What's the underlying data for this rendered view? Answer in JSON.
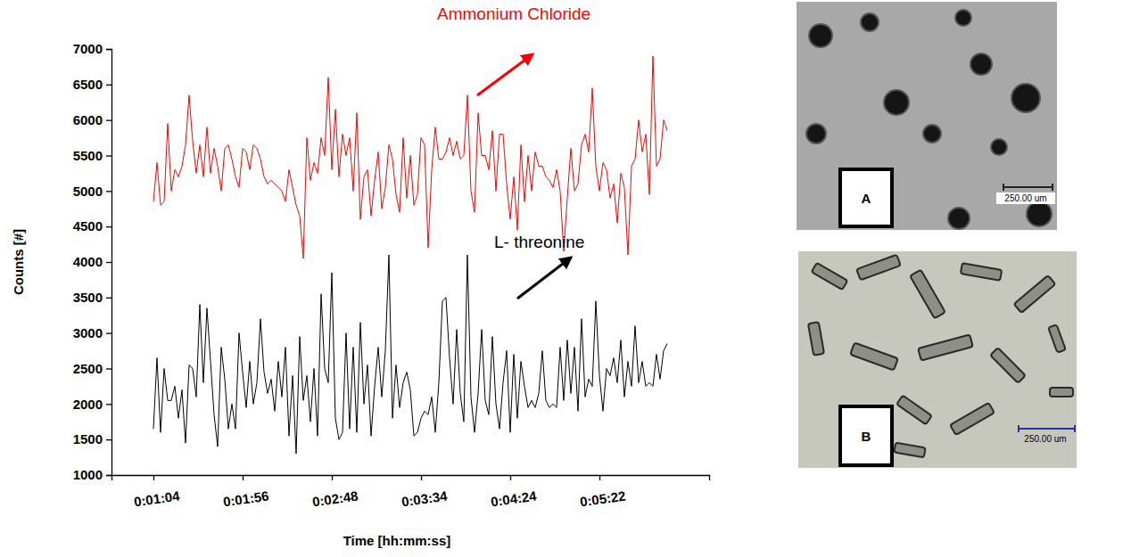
{
  "chart_data": {
    "type": "line",
    "x_label": "Time [hh:mm:ss]",
    "y_label": "Counts [#]",
    "grid": false,
    "categories": [
      "0:01:04",
      null,
      null,
      null,
      null,
      null,
      null,
      null,
      null,
      null,
      null,
      null,
      null,
      null,
      null,
      null,
      null,
      null,
      null,
      null,
      null,
      null,
      null,
      null,
      null,
      "0:01:56",
      null,
      null,
      null,
      null,
      null,
      null,
      null,
      null,
      null,
      null,
      null,
      null,
      null,
      null,
      null,
      null,
      null,
      null,
      null,
      null,
      null,
      null,
      null,
      null,
      "0:02:48",
      null,
      null,
      null,
      null,
      null,
      null,
      null,
      null,
      null,
      null,
      null,
      null,
      null,
      null,
      null,
      null,
      null,
      null,
      null,
      null,
      null,
      null,
      null,
      null,
      "0:03:34",
      null,
      null,
      null,
      null,
      null,
      null,
      null,
      null,
      null,
      null,
      null,
      null,
      null,
      null,
      null,
      null,
      null,
      null,
      null,
      null,
      null,
      null,
      null,
      null,
      "0:04:24",
      null,
      null,
      null,
      null,
      null,
      null,
      null,
      null,
      null,
      null,
      null,
      null,
      null,
      null,
      null,
      null,
      null,
      null,
      null,
      null,
      null,
      null,
      null,
      null,
      "0:05:22",
      null,
      null,
      null,
      null,
      null,
      null,
      null,
      null,
      null,
      null,
      null,
      null,
      null,
      null,
      null,
      null,
      null,
      null,
      null
    ],
    "ylim": [
      1000,
      7000
    ],
    "yticks": [
      1000,
      1500,
      2000,
      2500,
      3000,
      3500,
      4000,
      4500,
      5000,
      5500,
      6000,
      6500,
      7000
    ],
    "series": [
      {
        "name": "Ammonium Chloride",
        "color": "#ff0000",
        "values": [
          4850,
          5400,
          4800,
          4850,
          5950,
          5000,
          5300,
          5200,
          5350,
          5650,
          6350,
          5700,
          5250,
          5650,
          5200,
          5900,
          5250,
          5600,
          5350,
          5000,
          5600,
          5650,
          5450,
          5200,
          5050,
          5600,
          5550,
          5300,
          5650,
          5600,
          5450,
          5200,
          5100,
          5150,
          5100,
          5050,
          5000,
          4850,
          5300,
          5050,
          4800,
          4650,
          4050,
          5750,
          5150,
          5400,
          5250,
          5750,
          5500,
          6600,
          5300,
          6150,
          5200,
          5800,
          5500,
          5750,
          5000,
          6100,
          4600,
          5200,
          5300,
          4650,
          5150,
          5550,
          4750,
          5050,
          5650,
          5450,
          4950,
          4700,
          5750,
          4900,
          5500,
          4800,
          4950,
          5750,
          5650,
          4200,
          5300,
          5900,
          5450,
          5450,
          5550,
          5750,
          5500,
          5700,
          5450,
          5500,
          6350,
          5000,
          4700,
          6100,
          5500,
          5500,
          5300,
          5850,
          5000,
          5800,
          5800,
          5100,
          4600,
          5200,
          4450,
          5650,
          4850,
          5500,
          5000,
          5550,
          5350,
          5350,
          5200,
          5150,
          5050,
          5300,
          5000,
          4150,
          4900,
          5600,
          5000,
          5100,
          5650,
          5800,
          5550,
          6450,
          5350,
          5000,
          5400,
          5300,
          4900,
          5100,
          4550,
          5250,
          5050,
          4100,
          5350,
          5450,
          6000,
          5550,
          5800,
          4950,
          6900,
          5350,
          5450,
          6000,
          5850
        ]
      },
      {
        "name": "L- threonine",
        "color": "#000000",
        "values": [
          1650,
          2650,
          1600,
          2500,
          2050,
          2050,
          2250,
          1800,
          2200,
          1450,
          2550,
          2500,
          2100,
          3400,
          2300,
          3350,
          2600,
          1850,
          1400,
          2800,
          2350,
          1650,
          2000,
          1650,
          3000,
          2450,
          1950,
          2600,
          2000,
          2300,
          3200,
          2450,
          2150,
          2350,
          1900,
          2600,
          2100,
          2800,
          1550,
          2400,
          1300,
          2950,
          2050,
          2400,
          1750,
          2500,
          1550,
          3550,
          2500,
          2300,
          3850,
          1800,
          1500,
          1600,
          3000,
          1650,
          2800,
          1600,
          3150,
          2000,
          2550,
          1550,
          2250,
          2800,
          2100,
          2750,
          4100,
          1800,
          2550,
          1950,
          2300,
          2450,
          2200,
          1550,
          1600,
          1800,
          1900,
          1850,
          2100,
          1600,
          2300,
          3450,
          3500,
          2650,
          2000,
          3050,
          2150,
          1750,
          4100,
          2100,
          1600,
          2150,
          3050,
          2050,
          1850,
          2950,
          2000,
          1650,
          2300,
          2750,
          1600,
          2700,
          1800,
          2600,
          2250,
          1950,
          2050,
          1950,
          2150,
          2750,
          2050,
          1950,
          2000,
          1950,
          2800,
          2050,
          2900,
          2150,
          2800,
          1900,
          3200,
          2100,
          2350,
          2250,
          3450,
          2400,
          1900,
          2500,
          2400,
          2650,
          2300,
          2900,
          2100,
          2600,
          2250,
          3100,
          2300,
          2600,
          2250,
          2300,
          2250,
          2700,
          2350,
          2750,
          2850
        ]
      }
    ]
  },
  "images": [
    {
      "label": "A",
      "scale_bar": "250.00 um"
    },
    {
      "label": "B",
      "scale_bar": "250.00 um"
    }
  ]
}
